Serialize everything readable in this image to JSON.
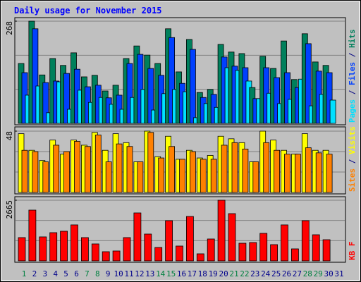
{
  "title": "Daily usage for November 2015",
  "legend_separator": " / ",
  "weekend_color": "#008040",
  "weekend_days": [
    0,
    6,
    7,
    13,
    14,
    20,
    21,
    27,
    28
  ],
  "chart_data": [
    {
      "type": "bar",
      "ylim": [
        0,
        268
      ],
      "yticks": [
        268
      ],
      "series": [
        {
          "name": "Hits",
          "color": "#00805c",
          "values": [
            157,
            268,
            127,
            170,
            152,
            185,
            122,
            126,
            85,
            100,
            170,
            203,
            179,
            157,
            248,
            135,
            220,
            81,
            89,
            207,
            187,
            183,
            94,
            176,
            144,
            216,
            115,
            235,
            161,
            152,
            0
          ]
        },
        {
          "name": "Files",
          "color": "#0040ff",
          "values": [
            133,
            248,
            107,
            111,
            131,
            142,
            96,
            100,
            67,
            74,
            157,
            181,
            144,
            126,
            225,
            105,
            194,
            68,
            76,
            174,
            150,
            146,
            65,
            146,
            120,
            133,
            94,
            209,
            137,
            133,
            0
          ]
        },
        {
          "name": "Pages",
          "color": "#00e0ff",
          "values": [
            74,
            98,
            28,
            109,
            37,
            87,
            55,
            68,
            50,
            37,
            68,
            89,
            35,
            78,
            89,
            83,
            15,
            52,
            42,
            146,
            139,
            111,
            65,
            79,
            52,
            63,
            116,
            46,
            76,
            61,
            0
          ]
        }
      ]
    },
    {
      "type": "bar",
      "ylim": [
        0,
        48
      ],
      "yticks": [
        48
      ],
      "series": [
        {
          "name": "Visits",
          "color": "#ffff00",
          "values": [
            46,
            33,
            25,
            41,
            30,
            41,
            37,
            47,
            33,
            46,
            39,
            24,
            48,
            28,
            44,
            26,
            33,
            27,
            29,
            44,
            42,
            39,
            24,
            48,
            41,
            33,
            30,
            46,
            33,
            33,
            0
          ]
        },
        {
          "name": "Sites",
          "color": "#ff8000",
          "values": [
            33,
            32,
            24,
            37,
            32,
            40,
            36,
            45,
            24,
            38,
            36,
            24,
            47,
            27,
            36,
            26,
            32,
            26,
            26,
            37,
            39,
            34,
            24,
            39,
            33,
            30,
            30,
            35,
            31,
            30,
            0
          ]
        }
      ]
    },
    {
      "type": "bar",
      "ylim": [
        0,
        2665
      ],
      "yticks": [
        2665
      ],
      "categories": [
        "1",
        "2",
        "3",
        "4",
        "5",
        "6",
        "7",
        "8",
        "9",
        "10",
        "11",
        "12",
        "13",
        "14",
        "15",
        "16",
        "17",
        "18",
        "19",
        "20",
        "21",
        "22",
        "23",
        "24",
        "25",
        "26",
        "27",
        "28",
        "29",
        "30",
        "31"
      ],
      "category_color": "#00008b",
      "series": [
        {
          "name": "KB F",
          "color": "#ff0000",
          "values": [
            1023,
            2231,
            1054,
            1240,
            1302,
            1581,
            1023,
            744,
            403,
            434,
            1023,
            2107,
            1178,
            589,
            1767,
            651,
            1952,
            310,
            961,
            2665,
            2076,
            775,
            806,
            1209,
            713,
            1581,
            527,
            1767,
            1147,
            930,
            0
          ]
        }
      ]
    }
  ]
}
